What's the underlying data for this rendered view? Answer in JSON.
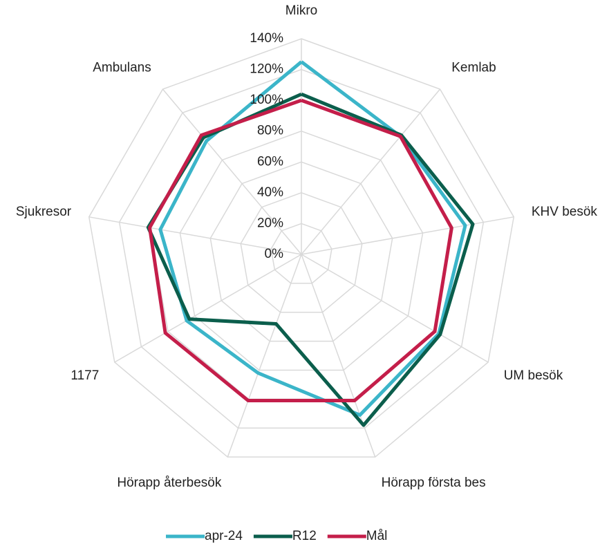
{
  "chart_data": {
    "type": "radar",
    "categories": [
      "Mikro",
      "Kemlab",
      "KHV besök",
      "UM besök",
      "Hörapp första bes",
      "Hörapp återbesök",
      "1177",
      "Sjukresor",
      "Ambulans"
    ],
    "series": [
      {
        "name": "apr-24",
        "color": "#3bb5c9",
        "values": [
          125,
          100,
          108,
          103,
          111,
          82,
          86,
          93,
          96
        ]
      },
      {
        "name": "R12",
        "color": "#0b5e4c",
        "values": [
          104,
          101,
          113,
          104,
          118,
          48,
          84,
          101,
          99
        ]
      },
      {
        "name": "Mål",
        "color": "#c41e4a",
        "values": [
          100,
          100,
          99,
          100,
          101,
          101,
          102,
          100,
          101
        ]
      }
    ],
    "ylim": [
      0,
      140
    ],
    "yticks": [
      {
        "value": 0,
        "label": "0%"
      },
      {
        "value": 20,
        "label": "20%"
      },
      {
        "value": 40,
        "label": "40%"
      },
      {
        "value": 60,
        "label": "60%"
      },
      {
        "value": 80,
        "label": "80%"
      },
      {
        "value": 100,
        "label": "100%"
      },
      {
        "value": 120,
        "label": "120%"
      },
      {
        "value": 140,
        "label": "140%"
      }
    ],
    "grid": true,
    "legend": "bottom"
  }
}
